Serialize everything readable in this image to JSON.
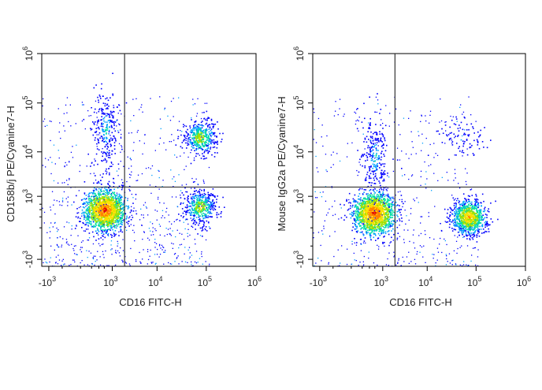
{
  "chart_data": [
    {
      "type": "scatter",
      "subtype": "flow-cytometry-pseudocolor-density",
      "xlabel": "CD16 FITC-H",
      "ylabel": "CD158b/j PE/Cyanine7-H",
      "x_scale": "biexponential",
      "y_scale": "biexponential",
      "xlim": [
        -1500,
        1000000
      ],
      "ylim": [
        -1500,
        1000000
      ],
      "x_ticks": [
        {
          "value": -1000,
          "base": "-10",
          "exp": "3"
        },
        {
          "value": 1000,
          "base": "10",
          "exp": "3"
        },
        {
          "value": 10000,
          "base": "10",
          "exp": "4"
        },
        {
          "value": 100000,
          "base": "10",
          "exp": "5"
        },
        {
          "value": 1000000,
          "base": "10",
          "exp": "6"
        }
      ],
      "y_ticks": [
        {
          "value": -1000,
          "base": "-10",
          "exp": "3"
        },
        {
          "value": 1000,
          "base": "10",
          "exp": "3"
        },
        {
          "value": 10000,
          "base": "10",
          "exp": "4"
        },
        {
          "value": 100000,
          "base": "10",
          "exp": "5"
        },
        {
          "value": 1000000,
          "base": "10",
          "exp": "6"
        }
      ],
      "gate_x": 2000,
      "gate_y": 1700,
      "populations": [
        {
          "x": 600,
          "y": 400,
          "density": "very high"
        },
        {
          "x": 650,
          "y": 30000,
          "density": "low"
        },
        {
          "x": 75000,
          "y": 20000,
          "density": "medium"
        },
        {
          "x": 75000,
          "y": 500,
          "density": "medium"
        }
      ],
      "grid": false,
      "legend": "none"
    },
    {
      "type": "scatter",
      "subtype": "flow-cytometry-pseudocolor-density",
      "xlabel": "CD16 FITC-H",
      "ylabel": "Mouse IgG2a PE/Cyanine7-H",
      "x_scale": "biexponential",
      "y_scale": "biexponential",
      "xlim": [
        -1500,
        1000000
      ],
      "ylim": [
        -1500,
        1000000
      ],
      "x_ticks": [
        {
          "value": -1000,
          "base": "-10",
          "exp": "3"
        },
        {
          "value": 1000,
          "base": "10",
          "exp": "3"
        },
        {
          "value": 10000,
          "base": "10",
          "exp": "4"
        },
        {
          "value": 100000,
          "base": "10",
          "exp": "5"
        },
        {
          "value": 1000000,
          "base": "10",
          "exp": "6"
        }
      ],
      "y_ticks": [
        {
          "value": -1000,
          "base": "-10",
          "exp": "3"
        },
        {
          "value": 1000,
          "base": "10",
          "exp": "3"
        },
        {
          "value": 10000,
          "base": "10",
          "exp": "4"
        },
        {
          "value": 100000,
          "base": "10",
          "exp": "5"
        },
        {
          "value": 1000000,
          "base": "10",
          "exp": "6"
        }
      ],
      "gate_x": 2000,
      "gate_y": 1700,
      "populations": [
        {
          "x": 550,
          "y": 300,
          "density": "very high"
        },
        {
          "x": 600,
          "y": 8000,
          "density": "low"
        },
        {
          "x": 70000,
          "y": 200,
          "density": "high"
        },
        {
          "x": 50000,
          "y": 20000,
          "density": "very low"
        }
      ],
      "grid": false,
      "legend": "none"
    }
  ],
  "colors": {
    "axis": "#000000",
    "gate_line": "#333333",
    "density_scale": [
      "#0000ff",
      "#00a0ff",
      "#00e0a0",
      "#a0e000",
      "#ffe000",
      "#ff8000",
      "#e00000"
    ]
  }
}
